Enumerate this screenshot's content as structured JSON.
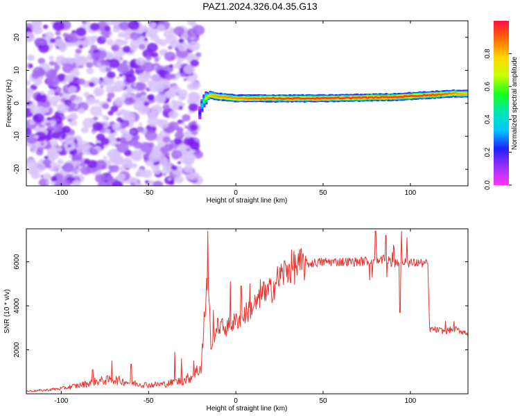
{
  "title": "PAZ1.2024.326.04.35.G13",
  "colors": {
    "snr_line": "#e8322b",
    "noise": "#8a3cf0",
    "colormap": [
      "#ff33ff",
      "#9b30ff",
      "#2020ff",
      "#00c8ff",
      "#00e6b4",
      "#18ff18",
      "#c8ff00",
      "#ffd700",
      "#ff6a00",
      "#ff1040"
    ]
  },
  "chart_data": [
    {
      "type": "heatmap",
      "title": "",
      "xlabel": "Height of straight line (km)",
      "ylabel": "Frequency (Hz)",
      "xlim": [
        -120,
        133
      ],
      "ylim": [
        -25,
        25
      ],
      "xticks": [
        -100,
        -50,
        0,
        50,
        100
      ],
      "yticks": [
        -20,
        -10,
        0,
        10,
        20
      ],
      "colorbar": {
        "label": "Normalized spectral amplitude",
        "range": [
          0,
          1
        ],
        "ticks": [
          "0.0",
          "0.2",
          "0.4",
          "0.6",
          "0.8"
        ]
      },
      "noise_region_x": [
        -120,
        -21
      ],
      "ridge": {
        "x": [
          -21,
          -20,
          -18,
          -15,
          -10,
          0,
          10,
          30,
          50,
          70,
          90,
          100,
          110,
          120,
          125,
          133
        ],
        "frequency": [
          -3,
          -1,
          1.5,
          2.5,
          2.0,
          1.5,
          1.5,
          1.5,
          1.5,
          1.7,
          1.9,
          2.2,
          2.5,
          2.8,
          3.0,
          2.8
        ],
        "amplitude": [
          0.2,
          0.35,
          0.6,
          0.8,
          0.85,
          0.85,
          0.9,
          0.95,
          0.95,
          0.95,
          0.95,
          0.95,
          0.95,
          0.9,
          0.85,
          0.8
        ]
      }
    },
    {
      "type": "line",
      "title": "",
      "xlabel": "Height of straight line (km)",
      "ylabel": "SNR (10 * v/v)",
      "xlim": [
        -120,
        133
      ],
      "ylim": [
        0,
        7500
      ],
      "xticks": [
        -100,
        -50,
        0,
        50,
        100
      ],
      "yticks": [
        2000,
        4000,
        6000
      ],
      "series": [
        {
          "x": [
            -120,
            -110,
            -100,
            -90,
            -80,
            -70,
            -60,
            -50,
            -40,
            -30,
            -25,
            -20,
            -18,
            -16,
            -15,
            -14,
            -12,
            -10,
            -5,
            0,
            5,
            10,
            15,
            20,
            25,
            30,
            35,
            40,
            50,
            60,
            70,
            75,
            80,
            85,
            90,
            95,
            100,
            105,
            110,
            111,
            115,
            120,
            125,
            133
          ],
          "y": [
            120,
            160,
            240,
            380,
            560,
            650,
            500,
            400,
            450,
            600,
            800,
            1200,
            3200,
            5600,
            3600,
            1800,
            2800,
            3100,
            3000,
            3300,
            3600,
            4000,
            4300,
            4700,
            5300,
            5700,
            5800,
            5900,
            6000,
            6000,
            6000,
            6050,
            6000,
            6100,
            5950,
            6000,
            5950,
            5950,
            5900,
            2950,
            2900,
            2850,
            2950,
            2750
          ],
          "spikes": [
            {
              "x": -82,
              "y": 1100
            },
            {
              "x": -71,
              "y": 1500
            },
            {
              "x": -60,
              "y": 1350
            },
            {
              "x": -35,
              "y": 1900
            },
            {
              "x": -31,
              "y": 1600
            },
            {
              "x": -24,
              "y": 1500
            },
            {
              "x": -16,
              "y": 7400
            },
            {
              "x": -13,
              "y": 3800
            },
            {
              "x": -3,
              "y": 5100
            },
            {
              "x": 3,
              "y": 4900
            },
            {
              "x": 8,
              "y": 5000
            },
            {
              "x": 14,
              "y": 5200
            },
            {
              "x": 16,
              "y": 5100
            },
            {
              "x": 80,
              "y": 7400
            },
            {
              "x": 86,
              "y": 7200
            },
            {
              "x": 94,
              "y": 3700
            },
            {
              "x": 95,
              "y": 7400
            },
            {
              "x": 98,
              "y": 7100
            },
            {
              "x": 120,
              "y": 3300
            },
            {
              "x": 125,
              "y": 3300
            }
          ]
        }
      ]
    }
  ]
}
